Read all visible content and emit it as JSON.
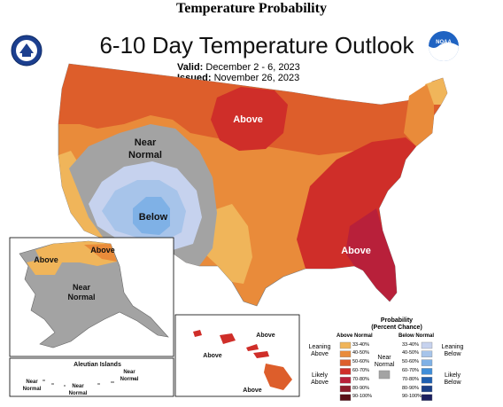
{
  "page_title": "Temperature Probability",
  "map_title": "6-10 Day Temperature Outlook",
  "valid_label": "Valid:",
  "valid_value": "December 2 - 6, 2023",
  "issued_label": "Issued:",
  "issued_value": "November 26, 2023",
  "regions": {
    "upper_midwest": "Above",
    "west_near": "Near",
    "west_normal": "Normal",
    "southwest": "Below",
    "southeast": "Above",
    "alaska_north": "Above",
    "alaska_northeast": "Above",
    "alaska_near": "Near",
    "alaska_normal": "Normal",
    "hawaii_west": "Above",
    "hawaii_mid": "Above",
    "hawaii_east": "Above",
    "aleutian_title": "Aleutian Islands",
    "aleutian_near": "Near",
    "aleutian_normal": "Normal"
  },
  "legend": {
    "title_line1": "Probability",
    "title_line2": "(Percent Chance)",
    "above_header": "Above Normal",
    "below_header": "Below Normal",
    "near_line1": "Near",
    "near_line2": "Normal",
    "leaning_above_1": "Leaning",
    "leaning_above_2": "Above",
    "likely_above_1": "Likely",
    "likely_above_2": "Above",
    "leaning_below_1": "Leaning",
    "leaning_below_2": "Below",
    "likely_below_1": "Likely",
    "likely_below_2": "Below",
    "above_bins": [
      {
        "label": "33-40%",
        "color": "#f0b55a"
      },
      {
        "label": "40-50%",
        "color": "#e98b3a"
      },
      {
        "label": "50-60%",
        "color": "#dd5e2b"
      },
      {
        "label": "60-70%",
        "color": "#cf2e29"
      },
      {
        "label": "70-80%",
        "color": "#b8203a"
      },
      {
        "label": "80-90%",
        "color": "#8e1c2c"
      },
      {
        "label": "90-100%",
        "color": "#5a1018"
      }
    ],
    "below_bins": [
      {
        "label": "33-40%",
        "color": "#c6d2ee"
      },
      {
        "label": "40-50%",
        "color": "#a7c4ea"
      },
      {
        "label": "50-60%",
        "color": "#7fb1e6"
      },
      {
        "label": "60-70%",
        "color": "#3f8ed9"
      },
      {
        "label": "70-80%",
        "color": "#1e5fb0"
      },
      {
        "label": "80-90%",
        "color": "#1a3f87"
      },
      {
        "label": "90-100%",
        "color": "#1b1f5e"
      }
    ],
    "near_color": "#a3a3a3"
  },
  "icons": {
    "left_logo": "doc-seal-icon",
    "right_logo": "noaa-logo-icon"
  }
}
